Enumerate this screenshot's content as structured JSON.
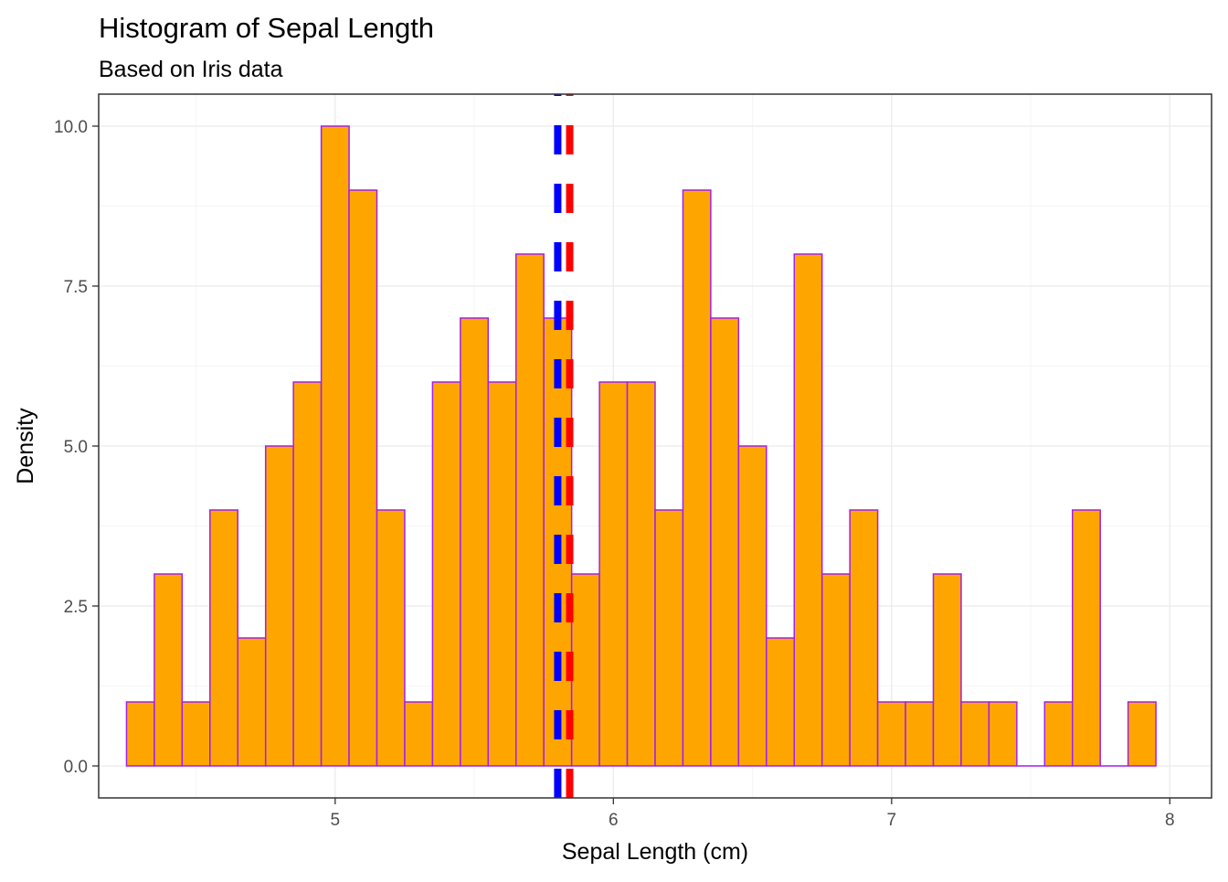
{
  "chart_data": {
    "type": "bar",
    "title": "Histogram of Sepal Length",
    "subtitle": "Based on Iris data",
    "xlabel": "Sepal Length (cm)",
    "ylabel": "Density",
    "xlim": [
      4.15,
      8.15
    ],
    "ylim": [
      -0.5,
      10.5
    ],
    "xticks": [
      "5",
      "6",
      "7",
      "8"
    ],
    "yticks": [
      "0.0",
      "2.5",
      "5.0",
      "7.5",
      "10.0"
    ],
    "grid": true,
    "bin_width": 0.1,
    "bins": [
      {
        "x": 4.3,
        "count": 1
      },
      {
        "x": 4.4,
        "count": 3
      },
      {
        "x": 4.5,
        "count": 1
      },
      {
        "x": 4.6,
        "count": 4
      },
      {
        "x": 4.7,
        "count": 2
      },
      {
        "x": 4.8,
        "count": 5
      },
      {
        "x": 4.9,
        "count": 6
      },
      {
        "x": 5.0,
        "count": 10
      },
      {
        "x": 5.1,
        "count": 9
      },
      {
        "x": 5.2,
        "count": 4
      },
      {
        "x": 5.3,
        "count": 1
      },
      {
        "x": 5.4,
        "count": 6
      },
      {
        "x": 5.5,
        "count": 7
      },
      {
        "x": 5.6,
        "count": 6
      },
      {
        "x": 5.7,
        "count": 8
      },
      {
        "x": 5.8,
        "count": 7
      },
      {
        "x": 5.9,
        "count": 3
      },
      {
        "x": 6.0,
        "count": 6
      },
      {
        "x": 6.1,
        "count": 6
      },
      {
        "x": 6.2,
        "count": 4
      },
      {
        "x": 6.3,
        "count": 9
      },
      {
        "x": 6.4,
        "count": 7
      },
      {
        "x": 6.5,
        "count": 5
      },
      {
        "x": 6.6,
        "count": 2
      },
      {
        "x": 6.7,
        "count": 8
      },
      {
        "x": 6.8,
        "count": 3
      },
      {
        "x": 6.9,
        "count": 4
      },
      {
        "x": 7.0,
        "count": 1
      },
      {
        "x": 7.1,
        "count": 1
      },
      {
        "x": 7.2,
        "count": 3
      },
      {
        "x": 7.3,
        "count": 1
      },
      {
        "x": 7.4,
        "count": 1
      },
      {
        "x": 7.5,
        "count": 0
      },
      {
        "x": 7.6,
        "count": 1
      },
      {
        "x": 7.7,
        "count": 4
      },
      {
        "x": 7.8,
        "count": 0
      },
      {
        "x": 7.9,
        "count": 1
      }
    ],
    "vlines": [
      {
        "x": 5.8,
        "color": "#0000FF",
        "linetype": "dashed"
      },
      {
        "x": 5.843,
        "color": "#FF0000",
        "linetype": "dashed"
      }
    ],
    "colors": {
      "bar_fill": "#FFA500",
      "bar_outline": "#A020F0",
      "panel_border": "#333333",
      "grid_major": "#EBEBEB",
      "grid_minor": "#F5F5F5",
      "tick_label": "#4D4D4D"
    }
  }
}
